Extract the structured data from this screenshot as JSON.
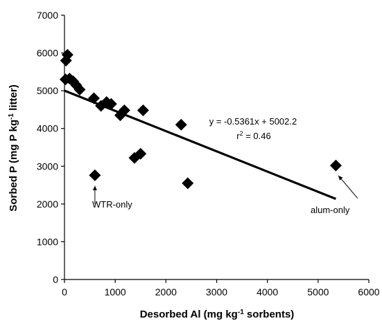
{
  "chart_data": {
    "type": "scatter",
    "xlabel": {
      "pre": "Desorbed Al (mg kg",
      "sup": "-1",
      "post": " sorbents)"
    },
    "ylabel": {
      "pre": "Sorbed P (mg P kg",
      "sup": "-1",
      "post": " litter)"
    },
    "xlim": [
      0,
      6000
    ],
    "ylim": [
      0,
      7000
    ],
    "xticks": [
      0,
      1000,
      2000,
      3000,
      4000,
      5000,
      6000
    ],
    "yticks": [
      0,
      1000,
      2000,
      3000,
      4000,
      5000,
      6000,
      7000
    ],
    "grid": false,
    "points": [
      {
        "x": 30,
        "y": 5800
      },
      {
        "x": 60,
        "y": 5950
      },
      {
        "x": 20,
        "y": 5300
      },
      {
        "x": 100,
        "y": 5320
      },
      {
        "x": 170,
        "y": 5250
      },
      {
        "x": 230,
        "y": 5150
      },
      {
        "x": 300,
        "y": 5030
      },
      {
        "x": 580,
        "y": 4800
      },
      {
        "x": 720,
        "y": 4600
      },
      {
        "x": 830,
        "y": 4700
      },
      {
        "x": 920,
        "y": 4650
      },
      {
        "x": 1100,
        "y": 4350
      },
      {
        "x": 1180,
        "y": 4480
      },
      {
        "x": 1550,
        "y": 4480
      },
      {
        "x": 1380,
        "y": 3220
      },
      {
        "x": 1500,
        "y": 3330
      },
      {
        "x": 2300,
        "y": 4100
      },
      {
        "x": 2430,
        "y": 2550
      },
      {
        "x": 600,
        "y": 2760
      },
      {
        "x": 5350,
        "y": 3020
      }
    ],
    "trendline": {
      "slope": -0.5361,
      "intercept": 5002.2,
      "x_start": 0,
      "x_end": 5350
    },
    "equation_text": "y = -0.5361x + 5002.2",
    "r2": {
      "pre": "r",
      "sup": "2",
      "post": " = 0.46"
    },
    "annotations": [
      {
        "text": "WTR-only",
        "arrow_from": {
          "x": 600,
          "y": 2000
        },
        "arrow_to": {
          "x": 600,
          "y": 2480
        }
      },
      {
        "text": "alum-only",
        "arrow_from": {
          "x": 5780,
          "y": 2150
        },
        "arrow_to": {
          "x": 5400,
          "y": 2750
        }
      }
    ]
  }
}
